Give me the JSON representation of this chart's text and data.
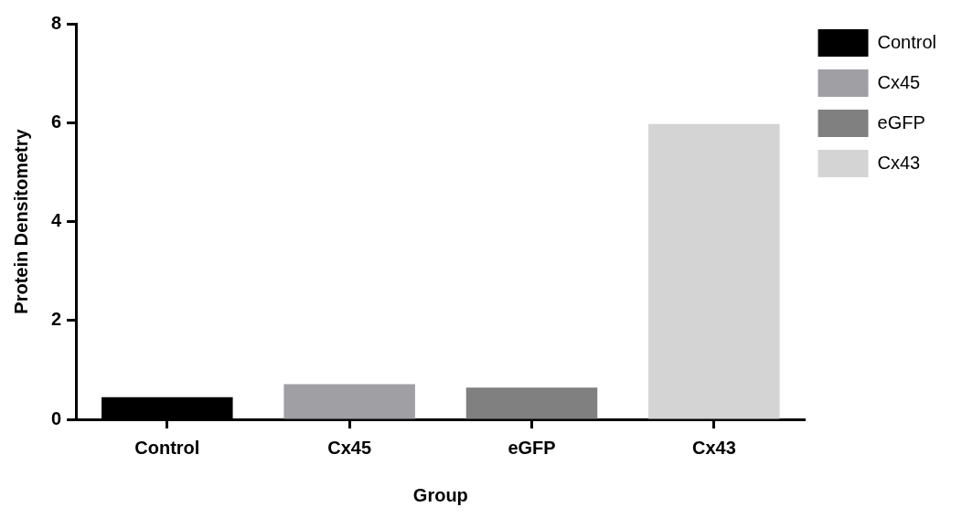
{
  "chart_data": {
    "type": "bar",
    "xlabel": "Group",
    "ylabel": "Protein Densitometry",
    "categories": [
      "Control",
      "Cx45",
      "eGFP",
      "Cx43"
    ],
    "stacked": true,
    "series": [
      {
        "name": "Control",
        "color": "#000000",
        "values": [
          0.45,
          null,
          null,
          null
        ]
      },
      {
        "name": "Cx45",
        "color": "#a0a0a4",
        "values": [
          null,
          0.71,
          null,
          null
        ]
      },
      {
        "name": "eGFP",
        "color": "#808080",
        "values": [
          null,
          null,
          0.64,
          null
        ]
      },
      {
        "name": "Cx43",
        "color": "#d4d4d4",
        "values": [
          null,
          null,
          null,
          5.97
        ]
      }
    ],
    "ylim": [
      0,
      8
    ],
    "yticks": [
      0,
      2,
      4,
      6,
      8
    ],
    "grid": false,
    "legend": "top right"
  }
}
